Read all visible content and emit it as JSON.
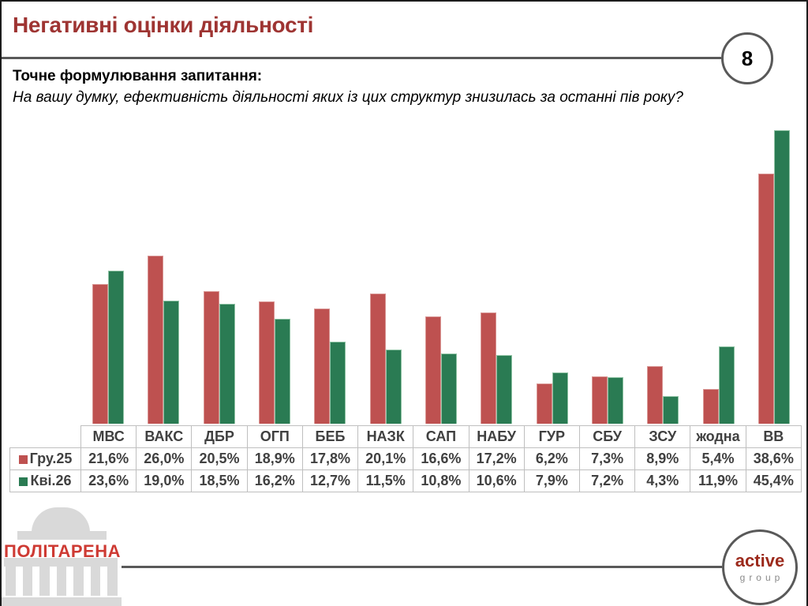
{
  "slide": {
    "title": "Негативні оцінки діяльності",
    "slide_number": "8",
    "question_label": "Точне формулювання запитання:",
    "question_text": "На вашу думку, ефективність діяльності яких із цих структур знизилась за останні пів року?"
  },
  "chart_data": {
    "type": "bar",
    "title": "Негативні оцінки діяльності",
    "categories": [
      "МВС",
      "ВАКС",
      "ДБР",
      "ОГП",
      "БЕБ",
      "НАЗК",
      "САП",
      "НАБУ",
      "ГУР",
      "СБУ",
      "ЗСУ",
      "жодна",
      "ВВ"
    ],
    "series": [
      {
        "name": "Гру.25",
        "color": "#BE5150",
        "border_color": "#D99694",
        "values": [
          21.6,
          26.0,
          20.5,
          18.9,
          17.8,
          20.1,
          16.6,
          17.2,
          6.2,
          7.3,
          8.9,
          5.4,
          38.6
        ],
        "display_values": [
          "21,6%",
          "26,0%",
          "20,5%",
          "18,9%",
          "17,8%",
          "20,1%",
          "16,6%",
          "17,2%",
          "6,2%",
          "7,3%",
          "8,9%",
          "5,4%",
          "38,6%"
        ]
      },
      {
        "name": "Кві.26",
        "color": "#2A7B53",
        "border_color": "#8FC3A4",
        "values": [
          23.6,
          19.0,
          18.5,
          16.2,
          12.7,
          11.5,
          10.8,
          10.6,
          7.9,
          7.2,
          4.3,
          11.9,
          45.4
        ],
        "display_values": [
          "23,6%",
          "19,0%",
          "18,5%",
          "16,2%",
          "12,7%",
          "11,5%",
          "10,8%",
          "10,6%",
          "7,9%",
          "7,2%",
          "4,3%",
          "11,9%",
          "45,4%"
        ]
      }
    ],
    "ylim": [
      0,
      50
    ],
    "grid": false,
    "legend_position": "table-rows-left",
    "value_format": "percent-comma-decimal"
  },
  "footer": {
    "left_logo_text": "ПОЛІТАРЕНА",
    "right_logo_line1": "active",
    "right_logo_line2": "group"
  },
  "colors": {
    "title_maroon": "#9E3432",
    "rule_gray": "#595959",
    "table_text": "#404040",
    "table_border": "#BFBFBF",
    "politarena_red": "#CE3A33",
    "building_gray": "#D9D9D9",
    "active_red": "#9C2A1C",
    "group_gray": "#8A8A8A"
  }
}
